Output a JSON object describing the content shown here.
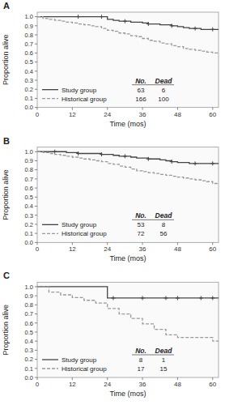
{
  "chart_data": [
    {
      "type": "step",
      "title": "A",
      "xlabel": "Time (mos)",
      "ylabel": "Proportion alive",
      "xlim": [
        0,
        62
      ],
      "ylim": [
        0.0,
        1.05
      ],
      "xticks": [
        0,
        12,
        24,
        36,
        48,
        60
      ],
      "yticks": [
        {
          "value": 0.0,
          "label": "0.0"
        },
        0.1,
        0.2,
        0.3,
        0.4,
        0.5,
        0.6,
        0.7,
        0.8,
        0.9,
        {
          "value": 1.0,
          "label": "1.0"
        }
      ],
      "legend": "lower left",
      "legend_header": [
        "No.",
        "Dead"
      ],
      "series": [
        {
          "name": "Study group",
          "color": "#444444",
          "line_style": "solid",
          "no": 63,
          "dead": 6,
          "x": [
            0,
            14,
            18,
            22,
            24,
            26,
            28,
            30,
            32,
            34,
            36,
            38,
            40,
            42,
            44,
            46,
            48,
            50,
            52,
            54,
            56,
            58,
            60,
            62
          ],
          "values": [
            1.0,
            1.0,
            1.0,
            1.0,
            0.97,
            0.96,
            0.95,
            0.95,
            0.94,
            0.94,
            0.93,
            0.92,
            0.92,
            0.91,
            0.91,
            0.9,
            0.89,
            0.88,
            0.87,
            0.87,
            0.86,
            0.86,
            0.86,
            0.86
          ],
          "censor_x": [
            14,
            22,
            30,
            38,
            46,
            54,
            60
          ],
          "censor_values": [
            1.0,
            1.0,
            0.95,
            0.92,
            0.9,
            0.87,
            0.86
          ]
        },
        {
          "name": "Historical group",
          "color": "#999999",
          "line_style": "dashed",
          "no": 166,
          "dead": 100,
          "x": [
            0,
            2,
            4,
            6,
            8,
            10,
            12,
            14,
            16,
            18,
            20,
            22,
            24,
            26,
            28,
            30,
            32,
            34,
            36,
            38,
            40,
            42,
            44,
            46,
            48,
            50,
            52,
            54,
            56,
            58,
            60,
            62
          ],
          "values": [
            1.0,
            0.98,
            0.97,
            0.96,
            0.95,
            0.94,
            0.93,
            0.92,
            0.91,
            0.9,
            0.89,
            0.87,
            0.85,
            0.84,
            0.82,
            0.81,
            0.79,
            0.78,
            0.76,
            0.74,
            0.73,
            0.71,
            0.7,
            0.68,
            0.67,
            0.65,
            0.64,
            0.63,
            0.62,
            0.61,
            0.6,
            0.59
          ]
        }
      ]
    },
    {
      "type": "step",
      "title": "B",
      "xlabel": "Time (mos)",
      "ylabel": "Proportion alive",
      "xlim": [
        0,
        62
      ],
      "ylim": [
        0.0,
        1.05
      ],
      "xticks": [
        0,
        12,
        24,
        36,
        48,
        60
      ],
      "yticks": [
        {
          "value": 0.0,
          "label": "0.0"
        },
        0.1,
        0.2,
        0.3,
        0.4,
        0.5,
        0.6,
        0.7,
        0.8,
        0.9,
        {
          "value": 1.0,
          "label": "1.0"
        }
      ],
      "legend": "lower left",
      "legend_header": [
        "No.",
        "Dead"
      ],
      "series": [
        {
          "name": "Study group",
          "color": "#444444",
          "line_style": "solid",
          "no": 53,
          "dead": 8,
          "x": [
            0,
            6,
            10,
            14,
            18,
            22,
            24,
            26,
            28,
            30,
            32,
            34,
            36,
            38,
            40,
            42,
            44,
            46,
            48,
            50,
            52,
            54,
            56,
            58,
            60,
            62
          ],
          "values": [
            1.0,
            1.0,
            0.99,
            0.98,
            0.98,
            0.97,
            0.97,
            0.96,
            0.95,
            0.95,
            0.94,
            0.93,
            0.93,
            0.92,
            0.92,
            0.91,
            0.9,
            0.89,
            0.88,
            0.88,
            0.87,
            0.87,
            0.87,
            0.87,
            0.87,
            0.87
          ],
          "censor_x": [
            6,
            14,
            22,
            30,
            38,
            46,
            54,
            60
          ],
          "censor_values": [
            1.0,
            0.98,
            0.97,
            0.95,
            0.92,
            0.89,
            0.87,
            0.87
          ]
        },
        {
          "name": "Historical group",
          "color": "#999999",
          "line_style": "dashed",
          "no": 72,
          "dead": 56,
          "x": [
            0,
            2,
            4,
            6,
            8,
            10,
            12,
            14,
            16,
            18,
            20,
            22,
            24,
            26,
            28,
            30,
            32,
            34,
            36,
            38,
            40,
            42,
            44,
            46,
            48,
            50,
            52,
            54,
            56,
            58,
            60,
            62
          ],
          "values": [
            1.0,
            0.99,
            0.98,
            0.97,
            0.96,
            0.95,
            0.94,
            0.93,
            0.92,
            0.91,
            0.9,
            0.89,
            0.87,
            0.86,
            0.84,
            0.83,
            0.81,
            0.79,
            0.78,
            0.77,
            0.76,
            0.75,
            0.74,
            0.73,
            0.72,
            0.71,
            0.7,
            0.69,
            0.68,
            0.67,
            0.65,
            0.64
          ]
        }
      ]
    },
    {
      "type": "step",
      "title": "C",
      "xlabel": "Time (mos)",
      "ylabel": "Proportion alive",
      "xlim": [
        0,
        62
      ],
      "ylim": [
        0.0,
        1.05
      ],
      "xticks": [
        0,
        12,
        24,
        36,
        48,
        60
      ],
      "yticks": [
        {
          "value": 0.0,
          "label": "0.0"
        },
        0.1,
        0.2,
        0.3,
        0.4,
        0.5,
        0.6,
        0.7,
        0.8,
        0.9,
        {
          "value": 1.0,
          "label": "1.0"
        }
      ],
      "legend": "lower left",
      "legend_header": [
        "No.",
        "Dead"
      ],
      "series": [
        {
          "name": "Study group",
          "color": "#444444",
          "line_style": "solid",
          "no": 8,
          "dead": 1,
          "x": [
            0,
            22,
            24,
            62
          ],
          "values": [
            1.0,
            1.0,
            0.875,
            0.875
          ],
          "censor_x": [
            26,
            36,
            44,
            48,
            56,
            60
          ],
          "censor_values": [
            0.875,
            0.875,
            0.875,
            0.875,
            0.875,
            0.875
          ]
        },
        {
          "name": "Historical group",
          "color": "#999999",
          "line_style": "dashed",
          "no": 17,
          "dead": 15,
          "x": [
            0,
            4,
            8,
            12,
            16,
            20,
            24,
            28,
            32,
            36,
            40,
            44,
            48,
            52,
            56,
            60,
            62
          ],
          "values": [
            1.0,
            0.94,
            0.91,
            0.88,
            0.85,
            0.82,
            0.76,
            0.7,
            0.65,
            0.59,
            0.53,
            0.47,
            0.44,
            0.44,
            0.44,
            0.4,
            0.4
          ]
        }
      ]
    }
  ]
}
